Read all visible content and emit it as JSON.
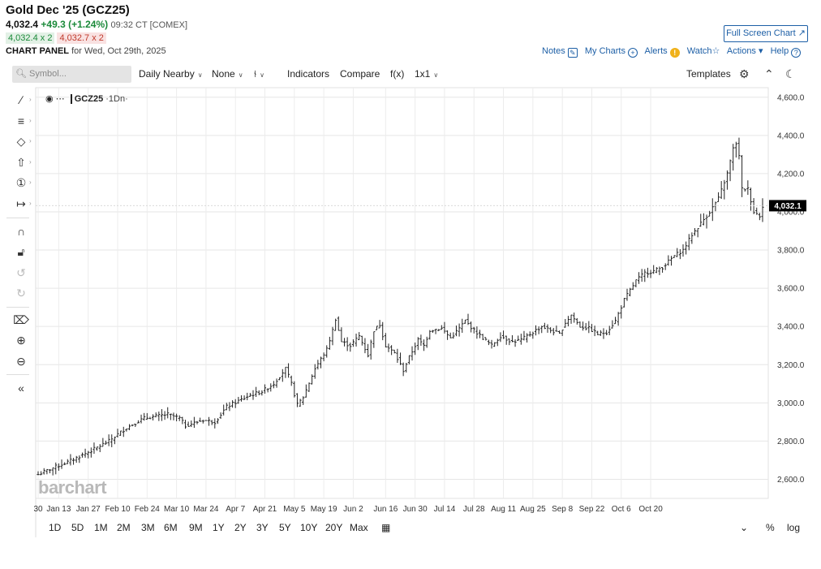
{
  "header": {
    "title": "Gold Dec '25 (GCZ25)",
    "last": "4,032.4",
    "change": "+49.3 (+1.24%)",
    "time": "09:32 CT [COMEX]",
    "bid": "4,032.4 x 2",
    "ask": "4,032.7 x 2",
    "panel_label": "CHART PANEL",
    "panel_date": "for Wed, Oct 29th, 2025",
    "fullscreen_label": "Full Screen Chart",
    "links": {
      "notes": "Notes",
      "mycharts": "My Charts",
      "alerts": "Alerts",
      "watch": "Watch",
      "actions": "Actions",
      "help": "Help"
    }
  },
  "toolbar": {
    "search_placeholder": "Symbol...",
    "daily_nearby": "Daily Nearby",
    "none": "None",
    "indicators": "Indicators",
    "compare": "Compare",
    "fx": "f(x)",
    "layout": "1x1",
    "templates": "Templates"
  },
  "chart_header": {
    "symbol": "GCZ25",
    "period": "·1Dn·"
  },
  "price_tag": "4,032.1",
  "watermark": "barchart",
  "periods": [
    "1D",
    "5D",
    "1M",
    "2M",
    "3M",
    "6M",
    "9M",
    "1Y",
    "2Y",
    "3Y",
    "5Y",
    "10Y",
    "20Y",
    "Max"
  ],
  "scale_options": {
    "pct": "%",
    "log": "log"
  },
  "chart_data": {
    "type": "ohlc",
    "x_ticks": [
      "30",
      "Jan 13",
      "Jan 27",
      "Feb 10",
      "Feb 24",
      "Mar 10",
      "Mar 24",
      "Apr 7",
      "Apr 21",
      "May 5",
      "May 19",
      "Jun 2",
      "Jun 16",
      "Jun 30",
      "Jul 14",
      "Jul 28",
      "Aug 11",
      "Aug 25",
      "Sep 8",
      "Sep 22",
      "Oct 6",
      "Oct 20"
    ],
    "y_ticks": [
      "4,600.0",
      "4,400.0",
      "4,200.0",
      "4,000.0",
      "3,800.0",
      "3,600.0",
      "3,400.0",
      "3,200.0",
      "3,000.0",
      "2,800.0",
      "2,600.0"
    ],
    "ylim": [
      2500,
      4650
    ],
    "last_price": 4032.1,
    "anchors": [
      [
        0,
        2625
      ],
      [
        5,
        2660
      ],
      [
        10,
        2690
      ],
      [
        18,
        2750
      ],
      [
        24,
        2800
      ],
      [
        30,
        2870
      ],
      [
        36,
        2920
      ],
      [
        44,
        2940
      ],
      [
        48,
        2920
      ],
      [
        50,
        2880
      ],
      [
        56,
        2910
      ],
      [
        60,
        2900
      ],
      [
        64,
        2980
      ],
      [
        68,
        3010
      ],
      [
        72,
        3040
      ],
      [
        76,
        3060
      ],
      [
        80,
        3100
      ],
      [
        84,
        3180
      ],
      [
        86,
        3100
      ],
      [
        88,
        2990
      ],
      [
        90,
        3030
      ],
      [
        94,
        3180
      ],
      [
        98,
        3280
      ],
      [
        100,
        3380
      ],
      [
        101,
        3440
      ],
      [
        103,
        3320
      ],
      [
        106,
        3300
      ],
      [
        109,
        3350
      ],
      [
        112,
        3250
      ],
      [
        114,
        3380
      ],
      [
        116,
        3410
      ],
      [
        118,
        3300
      ],
      [
        121,
        3260
      ],
      [
        124,
        3170
      ],
      [
        126,
        3240
      ],
      [
        129,
        3330
      ],
      [
        131,
        3300
      ],
      [
        133,
        3380
      ],
      [
        137,
        3390
      ],
      [
        140,
        3340
      ],
      [
        143,
        3390
      ],
      [
        145,
        3430
      ],
      [
        148,
        3380
      ],
      [
        151,
        3340
      ],
      [
        154,
        3300
      ],
      [
        157,
        3350
      ],
      [
        161,
        3320
      ],
      [
        164,
        3330
      ],
      [
        167,
        3360
      ],
      [
        171,
        3400
      ],
      [
        174,
        3380
      ],
      [
        177,
        3360
      ],
      [
        179,
        3420
      ],
      [
        181,
        3460
      ],
      [
        184,
        3400
      ],
      [
        187,
        3390
      ],
      [
        190,
        3360
      ],
      [
        193,
        3370
      ],
      [
        196,
        3430
      ],
      [
        199,
        3540
      ],
      [
        203,
        3640
      ],
      [
        206,
        3680
      ],
      [
        209,
        3690
      ],
      [
        212,
        3710
      ],
      [
        214,
        3740
      ],
      [
        216,
        3770
      ],
      [
        219,
        3800
      ],
      [
        222,
        3880
      ],
      [
        225,
        3940
      ],
      [
        228,
        4000
      ],
      [
        231,
        4070
      ],
      [
        234,
        4200
      ],
      [
        236,
        4330
      ],
      [
        237,
        4360
      ],
      [
        238,
        4290
      ],
      [
        239,
        4120
      ],
      [
        241,
        4120
      ],
      [
        243,
        4000
      ],
      [
        245,
        3980
      ],
      [
        246,
        4032
      ]
    ]
  }
}
